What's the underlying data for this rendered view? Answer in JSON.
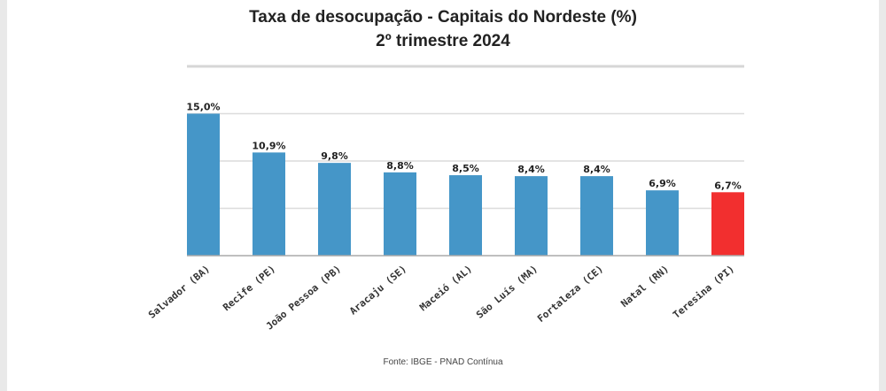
{
  "chart_data": {
    "type": "bar",
    "title": "Taxa de desocupação - Capitais do Nordeste (%)",
    "subtitle": "2º trimestre 2024",
    "categories": [
      "Salvador (BA)",
      "Recife (PE)",
      "João Pessoa (PB)",
      "Aracaju (SE)",
      "Maceió (AL)",
      "São Luís (MA)",
      "Fortaleza (CE)",
      "Natal (RN)",
      "Teresina (PI)"
    ],
    "values": [
      15.0,
      10.9,
      9.8,
      8.8,
      8.5,
      8.4,
      8.4,
      6.9,
      6.7
    ],
    "data_labels": [
      "15,0%",
      "10,9%",
      "9,8%",
      "8,8%",
      "8,5%",
      "8,4%",
      "8,4%",
      "6,9%",
      "6,7%"
    ],
    "colors": [
      "#4596c8",
      "#4596c8",
      "#4596c8",
      "#4596c8",
      "#4596c8",
      "#4596c8",
      "#4596c8",
      "#4596c8",
      "#f22f2f"
    ],
    "xlabel": "",
    "ylabel": "",
    "ylim": [
      0,
      20
    ],
    "gridlines": [
      5,
      10,
      15,
      20
    ],
    "grid": true,
    "source": "Fonte: IBGE - PNAD Contínua"
  }
}
